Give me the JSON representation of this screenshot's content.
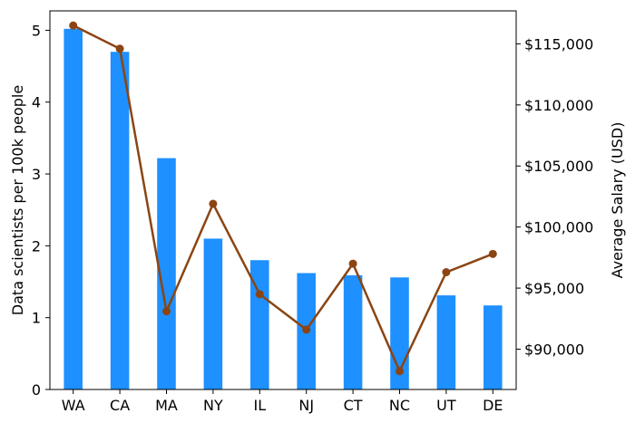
{
  "chart_data": {
    "type": "bar+line",
    "categories": [
      "WA",
      "CA",
      "MA",
      "NY",
      "IL",
      "NJ",
      "CT",
      "NC",
      "UT",
      "DE"
    ],
    "bar_series": {
      "name": "Data scientists per 100k people",
      "values": [
        5.02,
        4.7,
        3.22,
        2.1,
        1.8,
        1.62,
        1.59,
        1.56,
        1.31,
        1.17
      ],
      "color": "#1e90ff"
    },
    "line_series": {
      "name": "Average Salary (USD)",
      "values": [
        116500,
        114600,
        93100,
        101900,
        94500,
        91600,
        97000,
        88200,
        96300,
        97800
      ],
      "color": "#8b4513"
    },
    "ylabel_left": "Data scientists per 100k people",
    "ylabel_right": "Average Salary (USD)",
    "ylim_left": [
      0,
      5.27
    ],
    "ylim_right": [
      86700,
      117700
    ],
    "yticks_left": [
      "0",
      "1",
      "2",
      "3",
      "4",
      "5"
    ],
    "yticks_left_values": [
      0,
      1,
      2,
      3,
      4,
      5
    ],
    "yticks_right": [
      "$90,000",
      "$95,000",
      "$100,000",
      "$105,000",
      "$110,000",
      "$115,000"
    ],
    "yticks_right_values": [
      90000,
      95000,
      100000,
      105000,
      110000,
      115000
    ]
  }
}
